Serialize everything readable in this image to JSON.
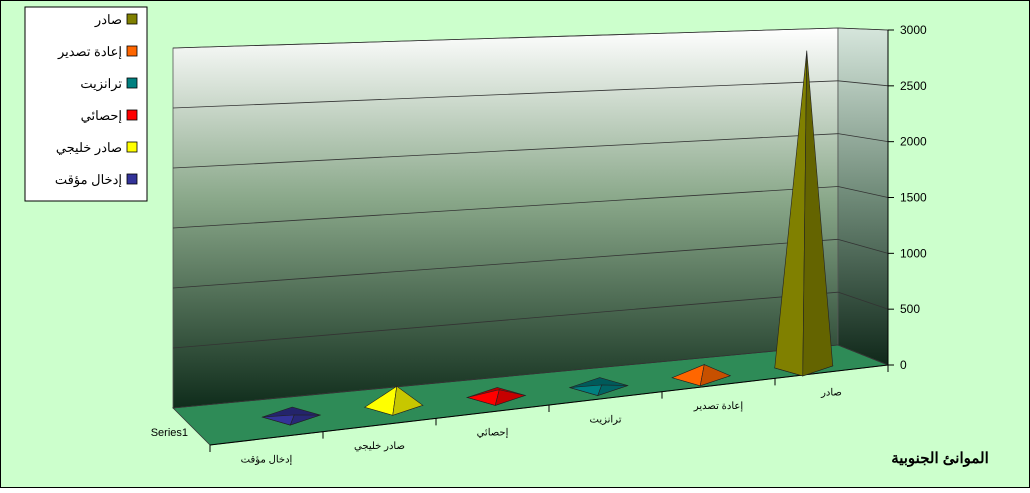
{
  "chart_data": {
    "type": "bar",
    "style": "3d-pyramid",
    "title": "الموانئ الجنوبية",
    "series_label": "Series1",
    "categories": [
      "إدخال مؤقت",
      "صادر خليجي",
      "إحصائي",
      "ترانزيت",
      "إعادة تصدير",
      "صادر"
    ],
    "values": [
      10,
      180,
      60,
      15,
      110,
      2850
    ],
    "colors": [
      "#333399",
      "#ffff00",
      "#ff0000",
      "#008080",
      "#ff6600",
      "#808000"
    ],
    "yticks": [
      0,
      500,
      1000,
      1500,
      2000,
      2500,
      3000
    ],
    "ylim": [
      0,
      3000
    ],
    "grid": true,
    "legend": {
      "position": "top-left",
      "items": [
        "صادر",
        "إعادة تصدير",
        "ترانزيت",
        "إحصائي",
        "صادر خليجي",
        "إدخال مؤقت"
      ],
      "colors": [
        "#808000",
        "#ff6600",
        "#008080",
        "#ff0000",
        "#ffff00",
        "#333399"
      ]
    },
    "background_color": "#ccffcc"
  }
}
